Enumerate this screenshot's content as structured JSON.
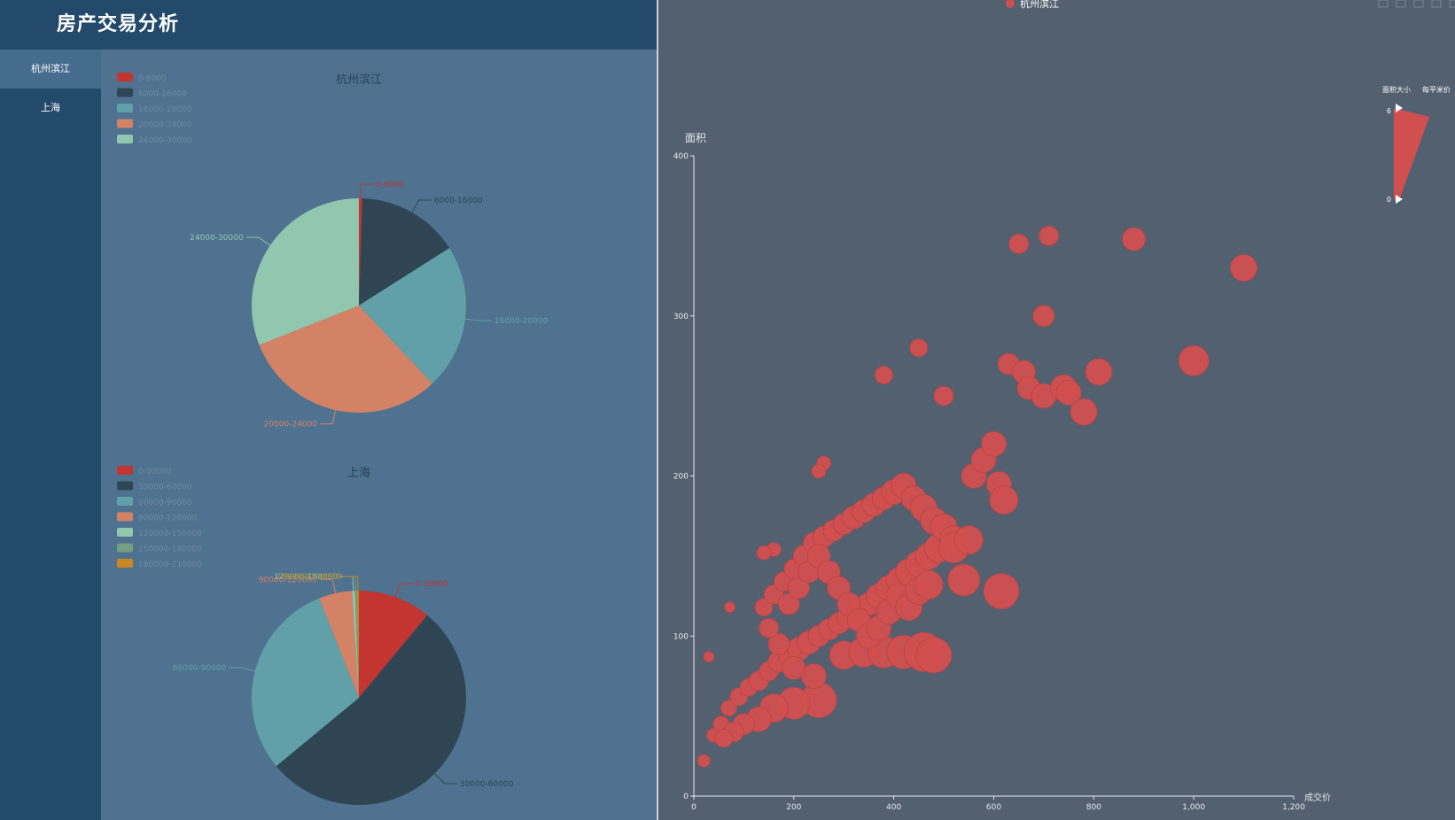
{
  "app": {
    "title": "房产交易分析"
  },
  "sidebar": {
    "items": [
      {
        "label": "杭州滨江"
      },
      {
        "label": "上海"
      }
    ]
  },
  "colors": {
    "accent": "#d14f4f",
    "palette": [
      "#c23531",
      "#2f4554",
      "#61a0a8",
      "#d48265",
      "#91c7ae",
      "#749f83",
      "#ca8622"
    ]
  },
  "charts": [
    {
      "type": "pie",
      "title": "杭州滨江",
      "categories": [
        "0-6000",
        "6000-16000",
        "16000-20000",
        "20000-24000",
        "24000-30000"
      ],
      "values": [
        0.5,
        15.5,
        22,
        31,
        31
      ]
    },
    {
      "type": "pie",
      "title": "上海",
      "categories": [
        "0-30000",
        "30000-60000",
        "60000-90000",
        "90000-120000",
        "120000-150000",
        "150000-180000",
        "180000-210000"
      ],
      "values": [
        11,
        53,
        30,
        5,
        0.4,
        0.3,
        0.3
      ]
    }
  ],
  "chart_data": {
    "type": "scatter",
    "legend": [
      "杭州滨江"
    ],
    "xlabel": "成交价",
    "ylabel": "面积",
    "xlim": [
      0,
      1200
    ],
    "ylim": [
      0,
      400
    ],
    "xticks": [
      "0",
      "200",
      "400",
      "600",
      "800",
      "1,000",
      "1,200"
    ],
    "yticks": [
      "0",
      "100",
      "200",
      "300",
      "400"
    ],
    "visual_map": {
      "labels": [
        "面积大小",
        "每平米价"
      ],
      "max_label": "6",
      "min_label": "0"
    },
    "points": [
      [
        30,
        87,
        6
      ],
      [
        72,
        118,
        6
      ],
      [
        20,
        22,
        7
      ],
      [
        40,
        38,
        8
      ],
      [
        55,
        45,
        9
      ],
      [
        70,
        55,
        9
      ],
      [
        90,
        62,
        10
      ],
      [
        110,
        68,
        10
      ],
      [
        130,
        72,
        11
      ],
      [
        150,
        78,
        11
      ],
      [
        170,
        84,
        12
      ],
      [
        190,
        88,
        12
      ],
      [
        210,
        92,
        13
      ],
      [
        230,
        96,
        13
      ],
      [
        250,
        100,
        12
      ],
      [
        270,
        104,
        12
      ],
      [
        290,
        108,
        12
      ],
      [
        310,
        112,
        13
      ],
      [
        330,
        116,
        13
      ],
      [
        350,
        120,
        13
      ],
      [
        370,
        125,
        14
      ],
      [
        390,
        130,
        14
      ],
      [
        410,
        135,
        14
      ],
      [
        430,
        140,
        15
      ],
      [
        450,
        145,
        15
      ],
      [
        470,
        150,
        15
      ],
      [
        490,
        155,
        16
      ],
      [
        140,
        118,
        10
      ],
      [
        160,
        126,
        11
      ],
      [
        180,
        134,
        11
      ],
      [
        200,
        142,
        11
      ],
      [
        220,
        150,
        12
      ],
      [
        240,
        158,
        12
      ],
      [
        260,
        162,
        12
      ],
      [
        280,
        166,
        12
      ],
      [
        300,
        170,
        12
      ],
      [
        320,
        174,
        13
      ],
      [
        340,
        178,
        13
      ],
      [
        360,
        182,
        13
      ],
      [
        380,
        186,
        13
      ],
      [
        400,
        190,
        14
      ],
      [
        420,
        194,
        14
      ],
      [
        440,
        186,
        14
      ],
      [
        460,
        180,
        15
      ],
      [
        480,
        172,
        15
      ],
      [
        500,
        168,
        15
      ],
      [
        520,
        160,
        16
      ],
      [
        300,
        88,
        16
      ],
      [
        340,
        90,
        17
      ],
      [
        380,
        90,
        18
      ],
      [
        420,
        90,
        19
      ],
      [
        460,
        90,
        22
      ],
      [
        480,
        88,
        20
      ],
      [
        250,
        60,
        20
      ],
      [
        200,
        58,
        18
      ],
      [
        160,
        55,
        16
      ],
      [
        130,
        48,
        14
      ],
      [
        100,
        45,
        12
      ],
      [
        80,
        40,
        11
      ],
      [
        60,
        36,
        10
      ],
      [
        240,
        75,
        14
      ],
      [
        200,
        80,
        13
      ],
      [
        170,
        95,
        12
      ],
      [
        150,
        105,
        11
      ],
      [
        190,
        120,
        12
      ],
      [
        210,
        130,
        12
      ],
      [
        230,
        140,
        12
      ],
      [
        250,
        150,
        13
      ],
      [
        270,
        140,
        13
      ],
      [
        290,
        130,
        13
      ],
      [
        310,
        120,
        13
      ],
      [
        330,
        110,
        13
      ],
      [
        350,
        100,
        14
      ],
      [
        370,
        105,
        14
      ],
      [
        390,
        115,
        14
      ],
      [
        410,
        125,
        14
      ],
      [
        430,
        118,
        15
      ],
      [
        450,
        128,
        15
      ],
      [
        470,
        132,
        16
      ],
      [
        540,
        135,
        18
      ],
      [
        520,
        155,
        17
      ],
      [
        550,
        160,
        16
      ],
      [
        560,
        200,
        14
      ],
      [
        580,
        210,
        14
      ],
      [
        600,
        220,
        14
      ],
      [
        610,
        195,
        14
      ],
      [
        620,
        185,
        16
      ],
      [
        615,
        128,
        20
      ],
      [
        630,
        270,
        12
      ],
      [
        650,
        345,
        11
      ],
      [
        660,
        265,
        13
      ],
      [
        670,
        255,
        13
      ],
      [
        700,
        300,
        12
      ],
      [
        710,
        350,
        11
      ],
      [
        700,
        250,
        14
      ],
      [
        740,
        255,
        15
      ],
      [
        750,
        252,
        14
      ],
      [
        780,
        240,
        15
      ],
      [
        810,
        265,
        15
      ],
      [
        880,
        348,
        13
      ],
      [
        1000,
        272,
        17
      ],
      [
        1100,
        330,
        15
      ],
      [
        380,
        263,
        10
      ],
      [
        450,
        280,
        10
      ],
      [
        500,
        250,
        11
      ],
      [
        260,
        208,
        8
      ],
      [
        250,
        203,
        8
      ],
      [
        160,
        154,
        8
      ],
      [
        140,
        152,
        8
      ]
    ]
  }
}
